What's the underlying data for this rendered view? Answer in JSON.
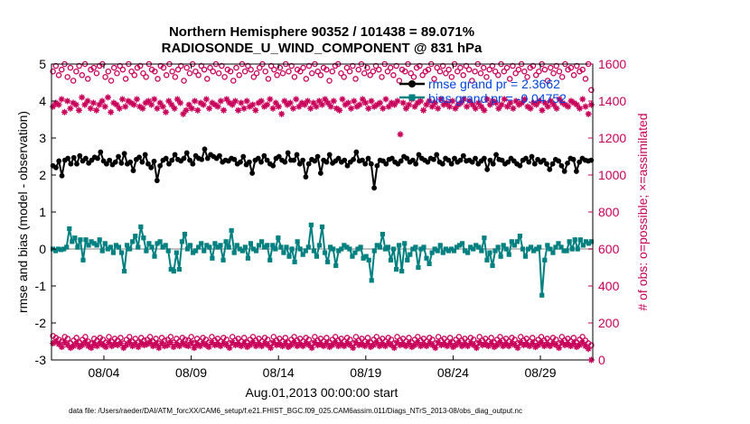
{
  "colors": {
    "rmse": "#000000",
    "bias": "#008080",
    "obs": "#c8005a",
    "zero_line": "#c0c0c0",
    "legend_text": "#0044dd"
  },
  "chart_data": {
    "type": "line",
    "title_line1": "Northern Hemisphere 90352 / 101438 = 89.071%",
    "title_line2": "RADIOSONDE_U_WIND_COMPONENT @ 831 hPa",
    "ylabel_left": "rmse and bias (model - observation)",
    "ylabel_right": "# of obs: o=possible; ×=assimilated",
    "xlabel": "Aug.01,2013 00:00:00 start",
    "footer": "data file: /Users/raeder/DAI/ATM_forcXX/CAM6_setup/f.e21.FHIST_BGC.f09_025.CAM6assim.011/Diags_NTrS_2013-08/obs_diag_output.nc",
    "x_tick_labels": [
      "08/04",
      "08/09",
      "08/14",
      "08/19",
      "08/24",
      "08/29"
    ],
    "x_tick_days": [
      4,
      9,
      14,
      19,
      24,
      29
    ],
    "xlim": [
      1,
      32
    ],
    "ylim_left": [
      -3,
      5
    ],
    "ylim_right": [
      0,
      1600
    ],
    "left_ticks": [
      "-3",
      "-2",
      "-1",
      "0",
      "1",
      "2",
      "3",
      "4",
      "5"
    ],
    "right_ticks": [
      "0",
      "200",
      "400",
      "600",
      "800",
      "1000",
      "1200",
      "1400",
      "1600"
    ],
    "legend": {
      "rmse_label": "rmse grand pr = 2.3662",
      "bias_label": "bias grand pr = -0.04752"
    },
    "series": [
      {
        "name": "rmse",
        "values": [
          2.25,
          2.2,
          2.38,
          1.98,
          2.4,
          2.45,
          2.3,
          2.47,
          2.3,
          2.52,
          2.38,
          2.45,
          2.32,
          2.4,
          2.48,
          2.45,
          2.62,
          2.38,
          2.3,
          2.4,
          2.28,
          2.35,
          2.5,
          2.32,
          2.58,
          2.3,
          2.35,
          2.12,
          2.42,
          2.48,
          2.35,
          2.55,
          2.3,
          2.2,
          2.37,
          1.85,
          2.25,
          2.4,
          2.45,
          2.3,
          2.4,
          2.55,
          2.42,
          2.38,
          2.45,
          2.6,
          2.4,
          2.3,
          2.52,
          2.45,
          2.42,
          2.7,
          2.45,
          2.55,
          2.5,
          2.45,
          2.52,
          2.35,
          2.4,
          2.38,
          2.45,
          2.42,
          2.3,
          2.35,
          2.5,
          2.28,
          2.35,
          2.05,
          2.4,
          2.45,
          2.35,
          2.52,
          2.4,
          2.3,
          2.25,
          2.45,
          2.5,
          2.4,
          2.35,
          2.6,
          2.4,
          2.4,
          2.55,
          2.3,
          2.4,
          1.95,
          2.3,
          2.42,
          2.38,
          2.5,
          2.05,
          2.4,
          2.35,
          2.55,
          2.32,
          2.38,
          2.45,
          2.35,
          2.4,
          2.25,
          2.35,
          2.42,
          2.62,
          2.38,
          2.4,
          2.3,
          2.45,
          2.3,
          1.65,
          2.25,
          2.4,
          2.38,
          2.3,
          2.42,
          2.45,
          2.35,
          2.3,
          2.38,
          2.5,
          2.45,
          2.35,
          2.4,
          2.3,
          2.55,
          2.45,
          2.4,
          2.35,
          2.45,
          2.42,
          2.55,
          2.35,
          2.3,
          2.45,
          2.4,
          2.3,
          2.45,
          2.35,
          2.4,
          2.52,
          2.38,
          2.4,
          2.35,
          2.45,
          2.3,
          2.38,
          2.45,
          2.15,
          2.4,
          2.3,
          2.55,
          2.42,
          2.4,
          2.3,
          2.35,
          2.45,
          2.38,
          2.3,
          2.25,
          2.4,
          2.45,
          2.35,
          2.5,
          2.3,
          2.42,
          2.35,
          2.4,
          2.3,
          2.15,
          2.3,
          2.42,
          2.38,
          2.25,
          2.1,
          2.32,
          2.45,
          2.42,
          2.1,
          2.35,
          2.45,
          2.4,
          2.38,
          2.4
        ]
      },
      {
        "name": "bias",
        "values": [
          0.0,
          -0.05,
          0.0,
          -0.02,
          0.0,
          0.05,
          0.55,
          0.2,
          0.3,
          0.05,
          0.25,
          -0.3,
          0.25,
          0.1,
          0.2,
          0.15,
          0.1,
          0.25,
          -0.05,
          0.15,
          0.0,
          0.05,
          -0.1,
          0.1,
          0.05,
          -0.1,
          -0.6,
          0.1,
          0.0,
          0.2,
          0.35,
          0.05,
          0.6,
          0.3,
          -0.05,
          0.15,
          0.05,
          -0.2,
          0.15,
          0.2,
          0.05,
          0.1,
          -0.05,
          -0.55,
          -0.6,
          -0.1,
          -0.55,
          0.2,
          0.4,
          0.0,
          0.1,
          -0.1,
          -0.05,
          0.05,
          0.15,
          -0.05,
          0.1,
          0.05,
          -0.25,
          0.15,
          0.05,
          0.1,
          -0.3,
          0.2,
          0.05,
          0.5,
          -0.1,
          0.1,
          0.0,
          -0.05,
          0.05,
          -0.25,
          0.15,
          0.0,
          -0.05,
          0.1,
          0.2,
          0.05,
          0.1,
          -0.3,
          0.1,
          0.0,
          0.3,
          0.05,
          -0.1,
          0.05,
          -0.2,
          0.0,
          -0.35,
          0.2,
          0.0,
          -0.15,
          -0.05,
          0.05,
          0.65,
          -0.05,
          -0.2,
          0.1,
          0.6,
          -0.1,
          -0.35,
          0.05,
          0.0,
          -0.45,
          -0.05,
          0.0,
          0.1,
          0.05,
          0.0,
          -0.2,
          -0.1,
          0.0,
          0.05,
          -0.25,
          -0.2,
          -0.3,
          -0.85,
          -0.05,
          0.1,
          0.05,
          0.4,
          0.0,
          0.05,
          -0.3,
          0.0,
          -0.55,
          0.1,
          -0.6,
          0.15,
          -0.3,
          -0.15,
          0.0,
          0.05,
          -0.5,
          0.0,
          0.05,
          -0.25,
          -0.4,
          -0.1,
          0.0,
          -0.05,
          0.1,
          -0.1,
          0.0,
          -0.05,
          0.0,
          -0.05,
          0.05,
          0.1,
          0.15,
          -0.05,
          -0.1,
          0.05,
          0.0,
          0.1,
          0.05,
          -0.05,
          0.3,
          -0.3,
          -0.1,
          -0.45,
          -0.05,
          0.05,
          -0.2,
          0.1,
          0.0,
          -0.15,
          0.2,
          0.1,
          0.2,
          0.35,
          0.0,
          -0.2,
          0.0,
          0.05,
          -0.05,
          0.0,
          0.05,
          -1.25,
          -0.3,
          0.1,
          0.0,
          -0.1,
          0.05,
          0.15,
          0.05,
          -0.05,
          -0.05,
          0.2,
          0.0,
          0.25,
          0.0,
          0.25,
          0.1,
          0.2,
          0.15,
          0.2
        ]
      },
      {
        "name": "obs_possible",
        "axis": "right",
        "values": [
          1560,
          1590,
          1540,
          1570,
          1600,
          1530,
          1580,
          1510,
          1560,
          1590,
          1540,
          1600,
          1520,
          1570,
          1580,
          1550,
          1590,
          1600,
          1530,
          1560,
          1510,
          1580,
          1550,
          1590,
          1570,
          1520,
          1600,
          1560,
          1540,
          1580,
          1590,
          1550,
          1530,
          1600,
          1570,
          1560,
          1520,
          1590,
          1580,
          1540,
          1600,
          1560,
          1530,
          1570,
          1590,
          1510,
          1580,
          1550,
          1600,
          1560,
          1540,
          1590,
          1570,
          1520,
          1580,
          1560,
          1600,
          1550,
          1590,
          1530,
          1570,
          1560,
          1510,
          1580,
          1540,
          1600,
          1560,
          1590,
          1570,
          1530,
          1550,
          1580,
          1600,
          1560,
          1520,
          1590,
          1570,
          1540,
          1580,
          1550,
          1600,
          1560,
          1590,
          1530,
          1570,
          1560,
          1580,
          1520,
          1590,
          1550,
          1600,
          1560,
          1540,
          1580,
          1570,
          1510,
          1560,
          1590,
          1600,
          1550,
          1530,
          1580,
          1560,
          1590,
          1520,
          1570,
          1600,
          1550,
          1580,
          1540,
          1560,
          1590,
          1570,
          1530,
          1600,
          1560,
          1580,
          1540,
          1590,
          1510,
          1570,
          1560,
          1600,
          1550,
          1530,
          1580,
          1590,
          1540,
          1560,
          1570,
          1600,
          1520,
          1580,
          1560,
          1590,
          1550,
          1570,
          1530,
          1600,
          1560,
          1580,
          1540,
          1590,
          1570,
          1510,
          1560,
          1600,
          1550,
          1580,
          1530,
          1570,
          1590,
          1560,
          1540,
          1600,
          1560,
          1580,
          1520,
          1590,
          1550,
          1570,
          1600,
          1560,
          1530,
          1580,
          1590,
          1540,
          1560,
          1600,
          1570,
          1510,
          1580,
          1550,
          1590,
          1560,
          1530,
          1600,
          1570,
          1580,
          1540,
          1590,
          1560,
          1570,
          1520,
          1600,
          1460
        ]
      },
      {
        "name": "obs_assimilated",
        "axis": "right",
        "values": [
          1370,
          1390,
          1380,
          1410,
          1340,
          1400,
          1360,
          1390,
          1380,
          1350,
          1420,
          1380,
          1400,
          1360,
          1390,
          1350,
          1380,
          1400,
          1370,
          1420,
          1340,
          1390,
          1380,
          1360,
          1410,
          1370,
          1400,
          1390,
          1380,
          1410,
          1370,
          1360,
          1390,
          1400,
          1380,
          1410,
          1360,
          1390,
          1370,
          1340,
          1400,
          1380,
          1360,
          1410,
          1390,
          1330,
          1350,
          1380,
          1360,
          1400,
          1350,
          1390,
          1380,
          1410,
          1360,
          1390,
          1380,
          1370,
          1400,
          1350,
          1410,
          1390,
          1380,
          1400,
          1350,
          1390,
          1360,
          1400,
          1370,
          1380,
          1350,
          1390,
          1400,
          1370,
          1380,
          1410,
          1360,
          1390,
          1370,
          1330,
          1400,
          1380,
          1390,
          1360,
          1410,
          1370,
          1390,
          1380,
          1400,
          1360,
          1390,
          1370,
          1400,
          1380,
          1410,
          1390,
          1370,
          1400,
          1360,
          1350,
          1410,
          1380,
          1390,
          1360,
          1400,
          1370,
          1380,
          1410,
          1390,
          1360,
          1400,
          1370,
          1380,
          1390,
          1360,
          1410,
          1370,
          1390,
          1380,
          1400,
          1220,
          1390,
          1360,
          1380,
          1410,
          1370,
          1390,
          1400,
          1350,
          1380,
          1400,
          1370,
          1390,
          1360,
          1410,
          1380,
          1390,
          1370,
          1400,
          1360,
          1380,
          1390,
          1410,
          1370,
          1400,
          1380,
          1360,
          1390,
          1370,
          1350,
          1410,
          1380,
          1400,
          1390,
          1360,
          1380,
          1410,
          1370,
          1390,
          1360,
          1400,
          1380,
          1390,
          1410,
          1370,
          1360,
          1390,
          1380,
          1400,
          1350,
          1390,
          1370,
          1400,
          1380,
          1360,
          1410,
          1390,
          1380,
          1370,
          1400,
          1390,
          1380,
          1360,
          1410,
          1370,
          1330,
          1380
        ]
      },
      {
        "name": "obs_possible_low",
        "axis": "right",
        "values": [
          130,
          120,
          110,
          100,
          125,
          115,
          90,
          105,
          120,
          95,
          110,
          125,
          100,
          90,
          115,
          105,
          120,
          110,
          95,
          125,
          100,
          115,
          105,
          120,
          90,
          110,
          125,
          100,
          115,
          95,
          120,
          105,
          110,
          125,
          100,
          115,
          90,
          120,
          105,
          110,
          125,
          95,
          115,
          100,
          120,
          110,
          105,
          125,
          90,
          115,
          100,
          120,
          110,
          95,
          125,
          105,
          115,
          100,
          120,
          110,
          90,
          125,
          105,
          115,
          100,
          120,
          95,
          110,
          125,
          105,
          115,
          100,
          120,
          110,
          90,
          125,
          105,
          115,
          100,
          120,
          95,
          110,
          125,
          105,
          115,
          100,
          120,
          110,
          90,
          125,
          105,
          115,
          100,
          120,
          95,
          110,
          125,
          105,
          115,
          100,
          120,
          110,
          90,
          125,
          105,
          115,
          100,
          120,
          95,
          110,
          125,
          105,
          115,
          100,
          120,
          110,
          90,
          125,
          105,
          115,
          100,
          120,
          95,
          110,
          125,
          105,
          115,
          100,
          120,
          110,
          90,
          125,
          105,
          115,
          100,
          120,
          95,
          110,
          125,
          105,
          115,
          100,
          120,
          110,
          90,
          125,
          105,
          115,
          100,
          120,
          95,
          110,
          125,
          105,
          115,
          100,
          120,
          110,
          90,
          125,
          105,
          115,
          100,
          120,
          95,
          110,
          125,
          105,
          115,
          100,
          120,
          110,
          90,
          125,
          105,
          115,
          100,
          120,
          95,
          110,
          125,
          105,
          90,
          80
        ]
      },
      {
        "name": "obs_assimilated_low",
        "axis": "right",
        "values": [
          90,
          100,
          85,
          70,
          95,
          80,
          65,
          75,
          90,
          70,
          80,
          95,
          75,
          65,
          85,
          75,
          90,
          80,
          70,
          95,
          75,
          85,
          80,
          90,
          65,
          80,
          95,
          75,
          85,
          70,
          90,
          80,
          85,
          95,
          75,
          85,
          65,
          90,
          75,
          80,
          95,
          70,
          85,
          75,
          90,
          80,
          75,
          95,
          65,
          85,
          75,
          90,
          80,
          70,
          95,
          80,
          85,
          75,
          90,
          80,
          65,
          95,
          80,
          85,
          75,
          90,
          70,
          80,
          95,
          75,
          85,
          75,
          90,
          80,
          65,
          95,
          80,
          85,
          75,
          90,
          70,
          80,
          95,
          75,
          85,
          75,
          90,
          80,
          65,
          95,
          80,
          85,
          75,
          90,
          70,
          80,
          95,
          75,
          85,
          75,
          90,
          80,
          65,
          95,
          80,
          85,
          75,
          90,
          70,
          80,
          95,
          75,
          85,
          75,
          90,
          80,
          65,
          95,
          80,
          85,
          75,
          90,
          70,
          80,
          95,
          75,
          85,
          75,
          90,
          80,
          65,
          95,
          80,
          85,
          75,
          90,
          70,
          80,
          95,
          75,
          85,
          75,
          90,
          80,
          65,
          95,
          80,
          85,
          75,
          90,
          70,
          80,
          95,
          75,
          85,
          75,
          90,
          80,
          65,
          95,
          80,
          85,
          75,
          90,
          70,
          80,
          95,
          75,
          85,
          75,
          90,
          80,
          65,
          95,
          80,
          85,
          75,
          90,
          70,
          80,
          95,
          75,
          60,
          0
        ]
      }
    ]
  }
}
